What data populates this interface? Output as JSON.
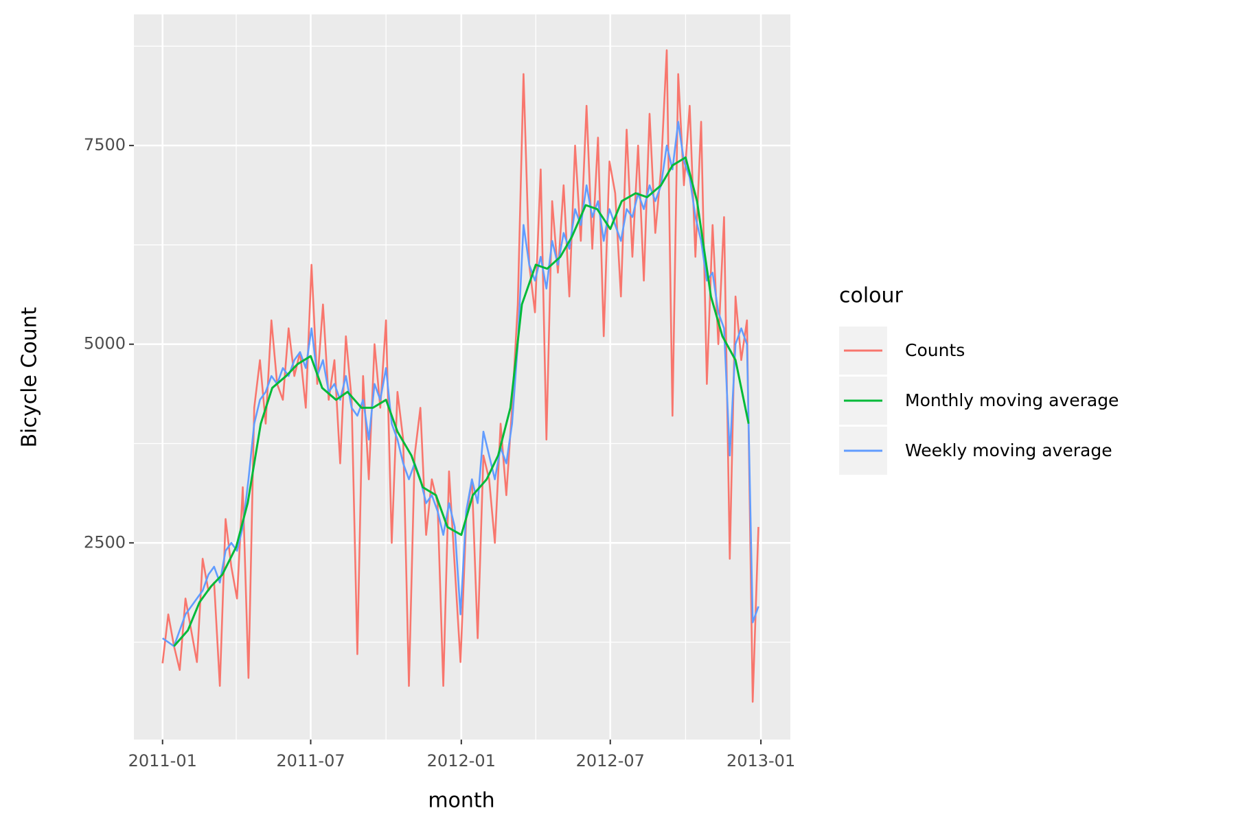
{
  "chart_data": {
    "type": "line",
    "x_label": "month",
    "y_label": "Bicycle Count",
    "legend_title": "colour",
    "legend_position": "right",
    "grid": true,
    "xlim": [
      "2010-11-27",
      "2013-02-06"
    ],
    "xticks": [
      {
        "value": "2011-01-01",
        "label": "2011-01"
      },
      {
        "value": "2011-07-01",
        "label": "2011-07"
      },
      {
        "value": "2012-01-01",
        "label": "2012-01"
      },
      {
        "value": "2012-07-01",
        "label": "2012-07"
      },
      {
        "value": "2013-01-01",
        "label": "2013-01"
      }
    ],
    "x_minor_ticks": [
      "2011-04-01",
      "2011-10-01",
      "2012-04-01",
      "2012-10-01"
    ],
    "ylim": [
      25,
      9150
    ],
    "yticks": [
      2500,
      5000,
      7500
    ],
    "y_minor_ticks": [
      1250,
      3750,
      6250,
      8750
    ],
    "x": [
      "2011-01-01",
      "2011-01-08",
      "2011-01-15",
      "2011-01-22",
      "2011-01-29",
      "2011-02-05",
      "2011-02-12",
      "2011-02-19",
      "2011-02-26",
      "2011-03-05",
      "2011-03-12",
      "2011-03-19",
      "2011-03-26",
      "2011-04-02",
      "2011-04-09",
      "2011-04-16",
      "2011-04-23",
      "2011-04-30",
      "2011-05-07",
      "2011-05-14",
      "2011-05-21",
      "2011-05-28",
      "2011-06-04",
      "2011-06-11",
      "2011-06-18",
      "2011-06-25",
      "2011-07-02",
      "2011-07-09",
      "2011-07-16",
      "2011-07-23",
      "2011-07-30",
      "2011-08-06",
      "2011-08-13",
      "2011-08-20",
      "2011-08-27",
      "2011-09-03",
      "2011-09-10",
      "2011-09-17",
      "2011-09-24",
      "2011-10-01",
      "2011-10-08",
      "2011-10-15",
      "2011-10-22",
      "2011-10-29",
      "2011-11-05",
      "2011-11-12",
      "2011-11-19",
      "2011-11-26",
      "2011-12-03",
      "2011-12-10",
      "2011-12-17",
      "2011-12-24",
      "2011-12-31",
      "2012-01-07",
      "2012-01-14",
      "2012-01-21",
      "2012-01-28",
      "2012-02-04",
      "2012-02-11",
      "2012-02-18",
      "2012-02-25",
      "2012-03-03",
      "2012-03-10",
      "2012-03-17",
      "2012-03-24",
      "2012-03-31",
      "2012-04-07",
      "2012-04-14",
      "2012-04-21",
      "2012-04-28",
      "2012-05-05",
      "2012-05-12",
      "2012-05-19",
      "2012-05-26",
      "2012-06-02",
      "2012-06-09",
      "2012-06-16",
      "2012-06-23",
      "2012-06-30",
      "2012-07-07",
      "2012-07-14",
      "2012-07-21",
      "2012-07-28",
      "2012-08-04",
      "2012-08-11",
      "2012-08-18",
      "2012-08-25",
      "2012-09-01",
      "2012-09-08",
      "2012-09-15",
      "2012-09-22",
      "2012-09-29",
      "2012-10-06",
      "2012-10-13",
      "2012-10-20",
      "2012-10-27",
      "2012-11-03",
      "2012-11-10",
      "2012-11-17",
      "2012-11-24",
      "2012-12-01",
      "2012-12-08",
      "2012-12-15",
      "2012-12-22",
      "2012-12-29"
    ],
    "series": [
      {
        "name": "Counts",
        "color": "#F8766D",
        "values": [
          985,
          1600,
          1200,
          900,
          1800,
          1400,
          1000,
          2300,
          1900,
          2000,
          700,
          2800,
          2200,
          1800,
          3200,
          800,
          4200,
          4800,
          4000,
          5300,
          4500,
          4300,
          5200,
          4600,
          4900,
          4200,
          6000,
          4500,
          5500,
          4300,
          4800,
          3500,
          5100,
          4300,
          1100,
          4600,
          3300,
          5000,
          4200,
          5300,
          2500,
          4400,
          3800,
          700,
          3600,
          4200,
          2600,
          3300,
          3000,
          700,
          3400,
          2200,
          1000,
          2800,
          3300,
          1300,
          3600,
          3300,
          2500,
          4000,
          3100,
          4200,
          5500,
          8400,
          6000,
          5400,
          7200,
          3800,
          6800,
          5900,
          7000,
          5600,
          7500,
          6300,
          8000,
          6200,
          7600,
          5100,
          7300,
          6900,
          5600,
          7700,
          6100,
          7500,
          5800,
          7900,
          6400,
          7200,
          8700,
          4100,
          8400,
          7000,
          8000,
          6100,
          7800,
          4500,
          6500,
          5000,
          6600,
          2300,
          5600,
          4800,
          5300,
          500,
          2700
        ]
      },
      {
        "name": "Monthly moving average",
        "color": "#00BA38",
        "x": [
          "2011-01-15",
          "2011-02-01",
          "2011-02-15",
          "2011-03-01",
          "2011-03-15",
          "2011-04-01",
          "2011-04-15",
          "2011-05-01",
          "2011-05-15",
          "2011-06-01",
          "2011-06-15",
          "2011-07-01",
          "2011-07-15",
          "2011-08-01",
          "2011-08-15",
          "2011-09-01",
          "2011-09-15",
          "2011-10-01",
          "2011-10-15",
          "2011-11-01",
          "2011-11-15",
          "2011-12-01",
          "2011-12-15",
          "2012-01-01",
          "2012-01-15",
          "2012-02-01",
          "2012-02-15",
          "2012-03-01",
          "2012-03-15",
          "2012-04-01",
          "2012-04-15",
          "2012-05-01",
          "2012-05-15",
          "2012-06-01",
          "2012-06-15",
          "2012-07-01",
          "2012-07-15",
          "2012-08-01",
          "2012-08-15",
          "2012-09-01",
          "2012-09-15",
          "2012-10-01",
          "2012-10-15",
          "2012-11-01",
          "2012-11-15",
          "2012-12-01",
          "2012-12-17"
        ],
        "values": [
          1200,
          1400,
          1750,
          1950,
          2100,
          2450,
          3000,
          4000,
          4450,
          4600,
          4750,
          4850,
          4450,
          4300,
          4400,
          4200,
          4200,
          4300,
          3900,
          3600,
          3200,
          3100,
          2700,
          2600,
          3100,
          3300,
          3600,
          4200,
          5500,
          6000,
          5950,
          6100,
          6350,
          6750,
          6700,
          6450,
          6800,
          6900,
          6850,
          7000,
          7250,
          7350,
          6800,
          5600,
          5100,
          4800,
          4000
        ]
      },
      {
        "name": "Weekly moving average",
        "color": "#619CFF",
        "values": [
          1300,
          1250,
          1200,
          1400,
          1600,
          1700,
          1800,
          1900,
          2100,
          2200,
          2000,
          2400,
          2500,
          2400,
          2700,
          3300,
          4000,
          4300,
          4400,
          4600,
          4500,
          4700,
          4600,
          4800,
          4900,
          4700,
          5200,
          4600,
          4800,
          4400,
          4500,
          4300,
          4600,
          4200,
          4100,
          4300,
          3800,
          4500,
          4300,
          4700,
          4000,
          3800,
          3500,
          3300,
          3500,
          3300,
          3000,
          3100,
          2900,
          2600,
          3000,
          2700,
          1600,
          2900,
          3300,
          3000,
          3900,
          3600,
          3300,
          3700,
          3500,
          4000,
          5000,
          6500,
          6000,
          5800,
          6100,
          5700,
          6300,
          6000,
          6400,
          6200,
          6700,
          6500,
          7000,
          6600,
          6800,
          6300,
          6700,
          6500,
          6300,
          6700,
          6600,
          6900,
          6700,
          7000,
          6800,
          7000,
          7500,
          7200,
          7800,
          7300,
          7100,
          6600,
          6300,
          5800,
          5900,
          5400,
          5200,
          3600,
          5000,
          5200,
          5000,
          1500,
          1700
        ]
      }
    ]
  }
}
